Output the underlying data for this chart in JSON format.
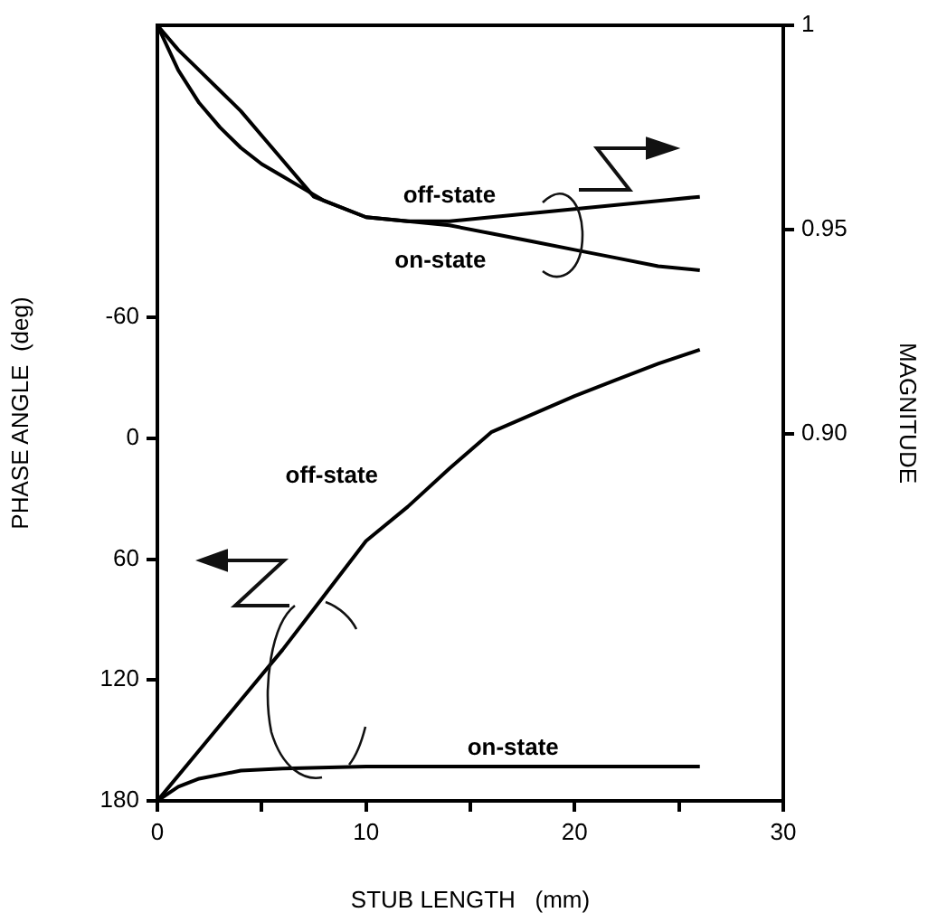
{
  "chart_data": {
    "type": "line",
    "xlabel": "STUB LENGTH   (mm)",
    "ylabel": "PHASE ANGLE  (deg)",
    "y2label": "MAGNITUDE",
    "xlim": [
      0,
      30
    ],
    "xticks": [
      0,
      {
        "value": 5,
        "label": null
      },
      10,
      {
        "value": 15,
        "label": null
      },
      20,
      {
        "value": 25,
        "label": null
      },
      30
    ],
    "ylim": [
      180,
      -205
    ],
    "yticks": [
      180,
      120,
      60,
      0,
      -60
    ],
    "y2lim": [
      0.81,
      1
    ],
    "y2ticks": [
      {
        "value": 0.9,
        "label": "0.90"
      },
      0.95,
      1
    ],
    "grid": false,
    "legend": false,
    "marker": "none",
    "line_style": "solid",
    "series": [
      {
        "name": "off-state",
        "color": "#000000",
        "axis": "y2",
        "x": [
          0,
          1,
          2,
          3,
          4,
          5,
          6,
          7,
          7.5,
          8,
          10,
          12,
          14,
          16,
          18,
          20,
          22,
          24,
          26
        ],
        "values": [
          1,
          0.994,
          0.989,
          0.984,
          0.979,
          0.973,
          0.967,
          0.961,
          0.958,
          0.957,
          0.953,
          0.952,
          0.952,
          0.953,
          0.954,
          0.955,
          0.956,
          0.957,
          0.958
        ]
      },
      {
        "name": "on-state",
        "color": "#000000",
        "axis": "y2",
        "x": [
          0,
          1,
          2,
          3,
          4,
          5,
          6,
          7,
          8,
          10,
          12,
          14,
          16,
          18,
          20,
          22,
          24,
          26
        ],
        "values": [
          1,
          0.989,
          0.981,
          0.975,
          0.97,
          0.966,
          0.963,
          0.96,
          0.957,
          0.953,
          0.952,
          0.951,
          0.949,
          0.947,
          0.945,
          0.943,
          0.941,
          0.94
        ]
      },
      {
        "name": "off-state",
        "color": "#000000",
        "axis": "y",
        "x": [
          0,
          2,
          4,
          6,
          8,
          10,
          12,
          14,
          16,
          18,
          20,
          22,
          24,
          26
        ],
        "values": [
          180,
          155,
          130,
          105,
          78,
          51,
          34,
          15,
          -3,
          -12,
          -21,
          -29,
          -37,
          -44
        ]
      },
      {
        "name": "on-state",
        "color": "#000000",
        "axis": "y",
        "x": [
          0,
          1,
          2,
          4,
          6,
          10,
          14,
          18,
          22,
          26
        ],
        "values": [
          180,
          173,
          169,
          165,
          164,
          163,
          163,
          163,
          163,
          163
        ]
      }
    ]
  }
}
